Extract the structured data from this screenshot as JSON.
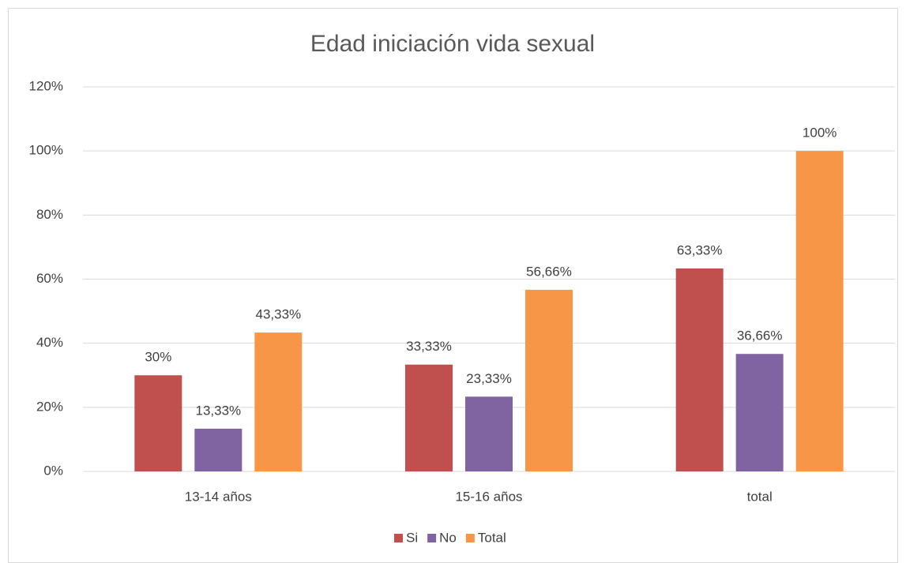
{
  "chart_data": {
    "type": "bar",
    "title": "Edad iniciación vida sexual",
    "categories": [
      "13-14 años",
      "15-16 años",
      "total"
    ],
    "series": [
      {
        "name": "Si",
        "color": "#c0504d",
        "values": [
          30,
          33.33,
          63.33
        ],
        "value_labels": [
          "30%",
          "33,33%",
          "63,33%"
        ]
      },
      {
        "name": "No",
        "color": "#8064a2",
        "values": [
          13.33,
          23.33,
          36.66
        ],
        "value_labels": [
          "13,33%",
          "23,33%",
          "36,66%"
        ]
      },
      {
        "name": "Total",
        "color": "#f79646",
        "values": [
          43.33,
          56.66,
          100
        ],
        "value_labels": [
          "43,33%",
          "56,66%",
          "100%"
        ]
      }
    ],
    "ylim": [
      0,
      120
    ],
    "yticks": [
      {
        "value": 0,
        "label": "0%"
      },
      {
        "value": 20,
        "label": "20%"
      },
      {
        "value": 40,
        "label": "40%"
      },
      {
        "value": 60,
        "label": "60%"
      },
      {
        "value": 80,
        "label": "80%"
      },
      {
        "value": 100,
        "label": "100%"
      },
      {
        "value": 120,
        "label": "120%"
      }
    ],
    "grid": true,
    "legend": "bottom"
  }
}
